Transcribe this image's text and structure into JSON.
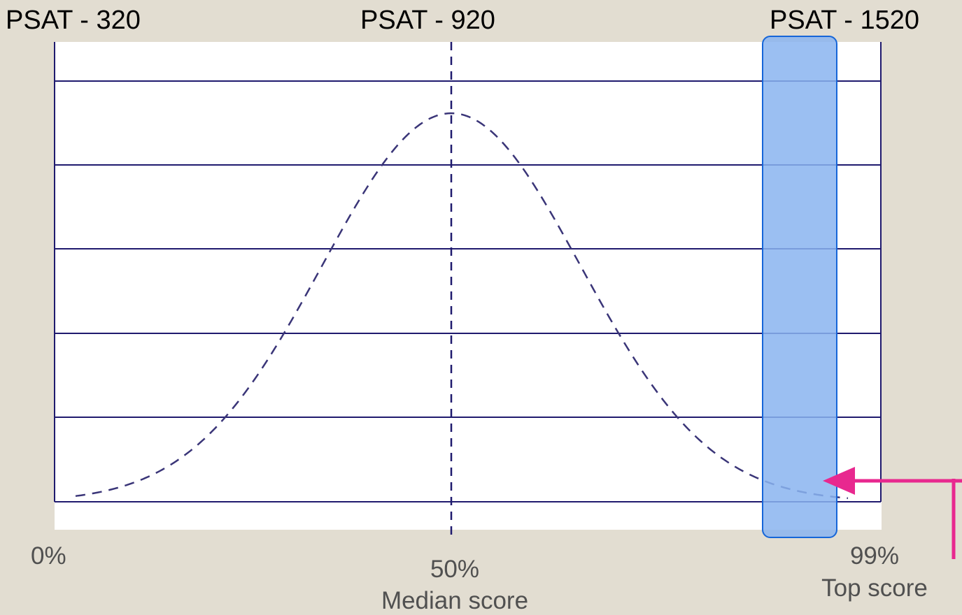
{
  "top_labels": {
    "left": "PSAT - 320",
    "middle": "PSAT - 920",
    "right": "PSAT - 1520"
  },
  "bottom_labels": {
    "left_percent": "0%",
    "middle_percent": "50%",
    "middle_caption": "Median score",
    "right_percent": "99%",
    "right_caption": "Top score"
  },
  "colors": {
    "background": "#e2ddd1",
    "plot_background": "#ffffff",
    "grid_line": "#1f1a6e",
    "curve": "#3a3578",
    "highlight_fill": "#8ab4f0",
    "highlight_stroke": "#1565d8",
    "arrow": "#e8288f"
  },
  "chart_data": {
    "type": "diagram",
    "shape": "normal-distribution curve",
    "x_markers": [
      {
        "score": "PSAT - 320",
        "percentile": "0%"
      },
      {
        "score": "PSAT - 920",
        "percentile": "50%",
        "caption": "Median score"
      },
      {
        "score": "PSAT - 1520",
        "percentile": "99%",
        "caption": "Top score"
      }
    ],
    "highlight": "top tail near 99%",
    "horizontal_gridlines": 6
  }
}
